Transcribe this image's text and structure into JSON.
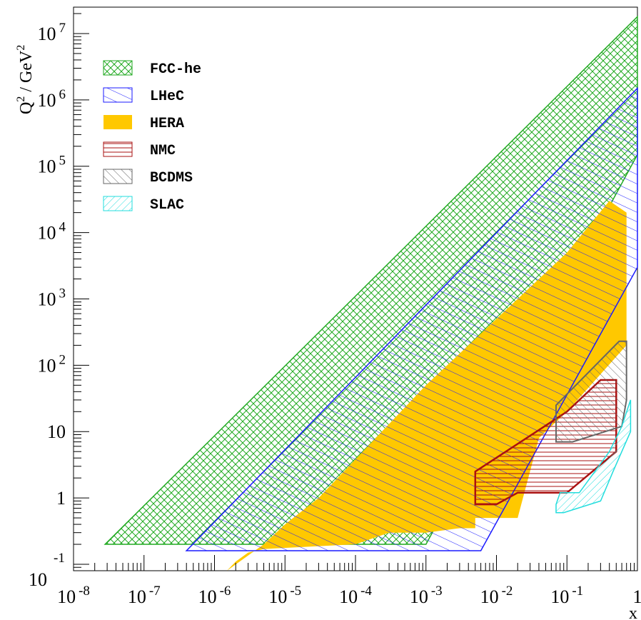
{
  "chart_data": {
    "type": "area",
    "title": "",
    "xlabel": "x",
    "ylabel_parts": [
      "Q",
      "2",
      " / GeV",
      "2"
    ],
    "x_scale": "log",
    "y_scale": "log",
    "xlim": [
      1e-08,
      1
    ],
    "ylim": [
      0.08,
      25000000.0
    ],
    "x_ticks": [
      {
        "value": 1e-08,
        "base": "10",
        "exp": "-8"
      },
      {
        "value": 1e-07,
        "base": "10",
        "exp": "-7"
      },
      {
        "value": 1e-06,
        "base": "10",
        "exp": "-6"
      },
      {
        "value": 1e-05,
        "base": "10",
        "exp": "-5"
      },
      {
        "value": 0.0001,
        "base": "10",
        "exp": "-4"
      },
      {
        "value": 0.001,
        "base": "10",
        "exp": "-3"
      },
      {
        "value": 0.01,
        "base": "10",
        "exp": "-2"
      },
      {
        "value": 0.1,
        "base": "10",
        "exp": "-1"
      },
      {
        "value": 1,
        "base": "1",
        "exp": ""
      }
    ],
    "y_ticks": [
      {
        "value": 0.1,
        "base": "10",
        "exp": "-1"
      },
      {
        "value": 1,
        "base": "1",
        "exp": ""
      },
      {
        "value": 10,
        "base": "10",
        "exp": ""
      },
      {
        "value": 100,
        "base": "10",
        "exp": "2"
      },
      {
        "value": 1000,
        "base": "10",
        "exp": "3"
      },
      {
        "value": 10000,
        "base": "10",
        "exp": "4"
      },
      {
        "value": 100000,
        "base": "10",
        "exp": "5"
      },
      {
        "value": 1000000,
        "base": "10",
        "exp": "6"
      },
      {
        "value": 10000000,
        "base": "10",
        "exp": "7"
      }
    ],
    "legend_position": "top-left",
    "series": [
      {
        "name": "FCC-he",
        "color": "#22aa22",
        "fill": "crosshatch",
        "polygon": [
          [
            2.8e-08,
            0.2
          ],
          [
            0.001,
            0.2
          ],
          [
            1,
            150000.0
          ],
          [
            1,
            18000000.0
          ]
        ]
      },
      {
        "name": "LHeC",
        "color": "#1a1aff",
        "fill": "diagonal-down",
        "polygon": [
          [
            4e-07,
            0.16
          ],
          [
            0.006,
            0.16
          ],
          [
            1,
            3000.0
          ],
          [
            1,
            1500000.0
          ]
        ]
      },
      {
        "name": "HERA",
        "color": "#ffc800",
        "fill": "solid",
        "polygon": [
          [
            1.5e-06,
            0.08
          ],
          [
            2e-06,
            0.11
          ],
          [
            3e-06,
            0.15
          ],
          [
            5e-06,
            0.17
          ],
          [
            0.0001,
            0.2
          ],
          [
            0.0003,
            0.3
          ],
          [
            0.001,
            0.3
          ],
          [
            0.003,
            0.35
          ],
          [
            0.005,
            0.35
          ],
          [
            0.005,
            0.5
          ],
          [
            0.015,
            0.5
          ],
          [
            0.02,
            0.5
          ],
          [
            0.04,
            8
          ],
          [
            0.1,
            20
          ],
          [
            0.7,
            200
          ],
          [
            0.7,
            20000.0
          ],
          [
            0.4,
            30000.0
          ],
          [
            0.1,
            5000.0
          ],
          [
            0.01,
            500
          ],
          [
            0.001,
            50
          ],
          [
            3e-05,
            1
          ],
          [
            1e-05,
            0.4
          ],
          [
            5e-06,
            0.2
          ]
        ]
      },
      {
        "name": "NMC",
        "color": "#aa1111",
        "fill": "horizontal",
        "polygon": [
          [
            0.005,
            0.8
          ],
          [
            0.01,
            0.8
          ],
          [
            0.02,
            1.2
          ],
          [
            0.1,
            1.2
          ],
          [
            0.5,
            5
          ],
          [
            0.5,
            60
          ],
          [
            0.3,
            60
          ],
          [
            0.1,
            20
          ],
          [
            0.005,
            2.5
          ]
        ]
      },
      {
        "name": "BCDMS",
        "color": "#666666",
        "fill": "diagonal-up",
        "polygon": [
          [
            0.07,
            7
          ],
          [
            0.12,
            7
          ],
          [
            0.6,
            12
          ],
          [
            0.7,
            30
          ],
          [
            0.7,
            230
          ],
          [
            0.55,
            230
          ],
          [
            0.07,
            25
          ]
        ]
      },
      {
        "name": "SLAC",
        "color": "#22dddd",
        "fill": "diagonal-down",
        "polygon": [
          [
            0.07,
            0.6
          ],
          [
            0.09,
            0.6
          ],
          [
            0.3,
            0.9
          ],
          [
            0.45,
            2.5
          ],
          [
            0.6,
            5
          ],
          [
            0.8,
            10
          ],
          [
            0.8,
            30
          ],
          [
            0.6,
            12
          ],
          [
            0.4,
            5
          ],
          [
            0.15,
            1.2
          ],
          [
            0.08,
            1.2
          ],
          [
            0.07,
            0.8
          ]
        ]
      }
    ]
  }
}
